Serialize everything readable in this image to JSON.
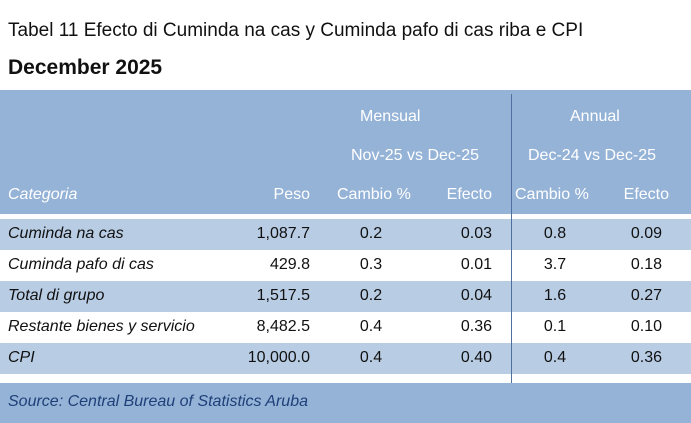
{
  "title": "Tabel 11 Efecto di Cuminda na cas y Cuminda pafo di cas riba e CPI",
  "subtitle": "December 2025",
  "header": {
    "group_monthly": "Mensual",
    "group_annual": "Annual",
    "period_monthly": "Nov-25 vs Dec-25",
    "period_annual": "Dec-24 vs Dec-25",
    "columns": [
      "Categoria",
      "Peso",
      "Cambio %",
      "Efecto",
      "Cambio %",
      "Efecto"
    ]
  },
  "rows": [
    [
      "Cuminda na cas",
      "1,087.7",
      "0.2",
      "0.03",
      "0.8",
      "0.09"
    ],
    [
      "Cuminda pafo di cas",
      "429.8",
      "0.3",
      "0.01",
      "3.7",
      "0.18"
    ],
    [
      "Total di grupo",
      "1,517.5",
      "0.2",
      "0.04",
      "1.6",
      "0.27"
    ],
    [
      "Restante bienes y servicio",
      "8,482.5",
      "0.4",
      "0.36",
      "0.1",
      "0.10"
    ],
    [
      "CPI",
      "10,000.0",
      "0.4",
      "0.40",
      "0.4",
      "0.36"
    ]
  ],
  "source": "Source: Central Bureau of Statistics Aruba",
  "colors": {
    "header": "#95b3d7",
    "band": "#b8cce4",
    "source_text": "#1f3f78"
  }
}
